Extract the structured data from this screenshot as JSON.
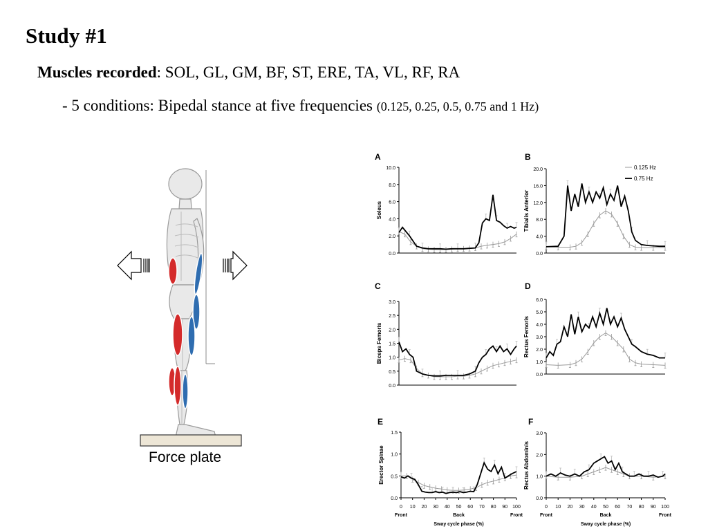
{
  "slide": {
    "title": "Study #1",
    "muscles_label": "Muscles recorded",
    "muscles_list": ": SOL, GL, GM, BF, ST, ERE, TA, VL, RF, RA",
    "conditions_text": "- 5 conditions: Bipedal stance at five frequencies ",
    "conditions_detail": "(0.125, 0.25, 0.5, 0.75 and 1 Hz)",
    "force_plate_label": "Force plate",
    "colors": {
      "agonist_red": "#d42a2a",
      "antagonist_blue": "#2f6db0"
    }
  },
  "chart_data": [
    {
      "panel": "A",
      "type": "line",
      "ylabel": "Soleus",
      "ylim": [
        0,
        10
      ],
      "yticks": [
        "0.0",
        "2.0",
        "4.0",
        "6.0",
        "8.0",
        "10.0"
      ],
      "series": [
        {
          "name": "0.125 Hz",
          "x": [
            0,
            5,
            10,
            15,
            20,
            25,
            30,
            35,
            40,
            45,
            50,
            55,
            60,
            65,
            70,
            75,
            80,
            85,
            90,
            95,
            100
          ],
          "values": [
            2.5,
            2.2,
            1.3,
            0.8,
            0.5,
            0.45,
            0.4,
            0.4,
            0.4,
            0.45,
            0.5,
            0.5,
            0.55,
            0.6,
            0.8,
            0.9,
            1.0,
            1.1,
            1.3,
            1.7,
            2.2
          ]
        },
        {
          "name": "0.75 Hz",
          "x": [
            0,
            3,
            6,
            9,
            12,
            15,
            20,
            25,
            30,
            35,
            40,
            45,
            50,
            55,
            60,
            65,
            68,
            71,
            74,
            77,
            80,
            83,
            86,
            89,
            92,
            95,
            98,
            100
          ],
          "values": [
            2.4,
            3.0,
            2.5,
            2.0,
            1.4,
            0.8,
            0.6,
            0.5,
            0.5,
            0.5,
            0.45,
            0.5,
            0.5,
            0.5,
            0.55,
            0.6,
            1.2,
            3.5,
            4.0,
            3.8,
            6.8,
            3.8,
            3.6,
            3.2,
            2.9,
            3.1,
            2.9,
            3.0
          ]
        }
      ]
    },
    {
      "panel": "B",
      "type": "line",
      "ylabel": "Tibialis Anterior",
      "ylim": [
        0,
        20
      ],
      "yticks": [
        "0.0",
        "4.0",
        "8.0",
        "12.0",
        "16.0",
        "20.0"
      ],
      "series": [
        {
          "name": "0.125 Hz",
          "x": [
            0,
            10,
            20,
            25,
            30,
            35,
            40,
            45,
            50,
            55,
            60,
            65,
            70,
            75,
            80,
            90,
            100
          ],
          "values": [
            1.5,
            1.4,
            1.4,
            1.6,
            2.5,
            4.5,
            7.0,
            9.0,
            10.0,
            9.2,
            7.0,
            4.0,
            2.0,
            1.4,
            1.3,
            1.3,
            1.3
          ]
        },
        {
          "name": "0.75 Hz",
          "x": [
            0,
            10,
            15,
            18,
            21,
            24,
            27,
            30,
            33,
            36,
            39,
            42,
            45,
            48,
            51,
            54,
            57,
            60,
            63,
            66,
            69,
            72,
            75,
            80,
            85,
            90,
            95,
            100
          ],
          "values": [
            1.5,
            1.6,
            4.0,
            16.0,
            10.0,
            14.0,
            11.0,
            16.5,
            12.0,
            14.5,
            12.0,
            14.5,
            13.0,
            15.5,
            11.5,
            14.0,
            12.5,
            16.0,
            11.0,
            13.5,
            10.0,
            5.0,
            3.0,
            2.0,
            1.8,
            1.7,
            1.6,
            1.6
          ]
        }
      ]
    },
    {
      "panel": "C",
      "type": "line",
      "ylabel": "Biceps Femoris",
      "ylim": [
        0,
        3
      ],
      "yticks": [
        "0.0",
        "0.5",
        "1.0",
        "1.5",
        "2.0",
        "2.5",
        "3.0"
      ],
      "series": [
        {
          "name": "0.125 Hz",
          "x": [
            0,
            5,
            10,
            15,
            20,
            25,
            30,
            35,
            40,
            45,
            50,
            55,
            60,
            65,
            70,
            75,
            80,
            85,
            90,
            95,
            100
          ],
          "values": [
            0.9,
            0.95,
            0.9,
            0.6,
            0.4,
            0.35,
            0.3,
            0.3,
            0.3,
            0.3,
            0.32,
            0.32,
            0.35,
            0.4,
            0.5,
            0.6,
            0.7,
            0.75,
            0.8,
            0.85,
            0.9
          ]
        },
        {
          "name": "0.75 Hz",
          "x": [
            0,
            3,
            6,
            9,
            12,
            15,
            20,
            25,
            30,
            35,
            40,
            45,
            50,
            55,
            60,
            65,
            68,
            71,
            74,
            77,
            80,
            83,
            86,
            89,
            92,
            95,
            98,
            100
          ],
          "values": [
            1.55,
            1.2,
            1.3,
            1.1,
            1.0,
            0.5,
            0.4,
            0.35,
            0.33,
            0.33,
            0.35,
            0.35,
            0.35,
            0.35,
            0.4,
            0.5,
            0.8,
            1.0,
            1.1,
            1.3,
            1.4,
            1.2,
            1.4,
            1.2,
            1.3,
            1.1,
            1.3,
            1.4
          ]
        }
      ]
    },
    {
      "panel": "D",
      "type": "line",
      "ylabel": "Rectus Femoris",
      "ylim": [
        0,
        6
      ],
      "yticks": [
        "0.0",
        "1.0",
        "2.0",
        "3.0",
        "4.0",
        "5.0",
        "6.0"
      ],
      "series": [
        {
          "name": "0.125 Hz",
          "x": [
            0,
            10,
            20,
            25,
            30,
            35,
            40,
            45,
            50,
            55,
            60,
            65,
            70,
            75,
            80,
            90,
            100
          ],
          "values": [
            0.75,
            0.7,
            0.75,
            0.9,
            1.2,
            1.8,
            2.5,
            3.0,
            3.3,
            3.0,
            2.5,
            2.0,
            1.2,
            0.9,
            0.8,
            0.75,
            0.7
          ]
        },
        {
          "name": "0.75 Hz",
          "x": [
            0,
            3,
            6,
            9,
            12,
            15,
            18,
            21,
            24,
            27,
            30,
            33,
            36,
            39,
            42,
            45,
            48,
            51,
            54,
            57,
            60,
            63,
            66,
            69,
            72,
            75,
            80,
            85,
            90,
            95,
            100
          ],
          "values": [
            1.3,
            1.8,
            1.5,
            2.4,
            2.6,
            3.8,
            3.0,
            4.8,
            3.2,
            4.6,
            3.4,
            4.0,
            3.7,
            4.6,
            3.8,
            4.9,
            4.0,
            5.3,
            4.0,
            4.6,
            3.8,
            4.5,
            3.6,
            3.0,
            2.4,
            2.2,
            1.8,
            1.6,
            1.5,
            1.3,
            1.3
          ]
        }
      ]
    },
    {
      "panel": "E",
      "type": "line",
      "ylabel": "Erector Spinae",
      "ylim": [
        0,
        1.5
      ],
      "yticks": [
        "0.0",
        "0.5",
        "1.0",
        "1.5"
      ],
      "xlabel": "Sway cycle phase (%)",
      "xticks": [
        "0",
        "10",
        "20",
        "30",
        "40",
        "50",
        "60",
        "70",
        "80",
        "90",
        "100"
      ],
      "xcats": [
        "Front",
        "Back",
        "Front"
      ],
      "series": [
        {
          "name": "0.125 Hz",
          "x": [
            0,
            5,
            10,
            15,
            20,
            25,
            30,
            35,
            40,
            45,
            50,
            55,
            60,
            65,
            70,
            75,
            80,
            85,
            90,
            95,
            100
          ],
          "values": [
            0.5,
            0.5,
            0.42,
            0.35,
            0.28,
            0.25,
            0.22,
            0.2,
            0.18,
            0.17,
            0.17,
            0.18,
            0.2,
            0.23,
            0.3,
            0.35,
            0.38,
            0.42,
            0.45,
            0.5,
            0.52
          ]
        },
        {
          "name": "0.75 Hz",
          "x": [
            0,
            3,
            6,
            9,
            12,
            15,
            18,
            21,
            24,
            27,
            30,
            33,
            36,
            39,
            42,
            45,
            48,
            51,
            54,
            57,
            60,
            63,
            66,
            69,
            72,
            75,
            78,
            81,
            84,
            87,
            90,
            93,
            96,
            100
          ],
          "values": [
            0.48,
            0.45,
            0.5,
            0.45,
            0.42,
            0.3,
            0.15,
            0.13,
            0.12,
            0.12,
            0.14,
            0.12,
            0.13,
            0.1,
            0.12,
            0.13,
            0.12,
            0.14,
            0.12,
            0.13,
            0.15,
            0.14,
            0.3,
            0.55,
            0.8,
            0.65,
            0.6,
            0.75,
            0.55,
            0.7,
            0.45,
            0.5,
            0.55,
            0.6
          ]
        }
      ]
    },
    {
      "panel": "F",
      "type": "line",
      "ylabel": "Rectus Abdominis",
      "ylim": [
        0,
        3
      ],
      "yticks": [
        "0.0",
        "1.0",
        "2.0",
        "3.0"
      ],
      "xlabel": "Sway cycle phase (%)",
      "xticks": [
        "0",
        "10",
        "20",
        "30",
        "40",
        "50",
        "60",
        "70",
        "80",
        "90",
        "100"
      ],
      "xcats": [
        "Front",
        "Back",
        "Front"
      ],
      "series": [
        {
          "name": "0.125 Hz",
          "x": [
            0,
            10,
            20,
            30,
            35,
            40,
            45,
            50,
            55,
            60,
            65,
            70,
            80,
            90,
            100
          ],
          "values": [
            1.0,
            0.95,
            0.95,
            1.0,
            1.1,
            1.2,
            1.3,
            1.4,
            1.3,
            1.2,
            1.1,
            1.0,
            1.0,
            0.95,
            1.0
          ]
        },
        {
          "name": "0.75 Hz",
          "x": [
            0,
            4,
            8,
            12,
            16,
            20,
            24,
            28,
            32,
            36,
            40,
            43,
            46,
            49,
            52,
            55,
            58,
            61,
            64,
            67,
            70,
            74,
            78,
            82,
            86,
            90,
            94,
            98,
            100
          ],
          "values": [
            1.0,
            1.1,
            1.0,
            1.15,
            1.05,
            1.0,
            1.1,
            1.0,
            1.2,
            1.3,
            1.6,
            1.7,
            1.8,
            1.9,
            1.6,
            1.7,
            1.3,
            1.6,
            1.2,
            1.1,
            1.0,
            1.0,
            1.1,
            1.0,
            1.0,
            1.05,
            0.95,
            1.0,
            1.1
          ]
        }
      ]
    }
  ],
  "legend": {
    "entries": [
      "0.125 Hz",
      "0.75 Hz"
    ],
    "placement": "top-right of panel B"
  }
}
